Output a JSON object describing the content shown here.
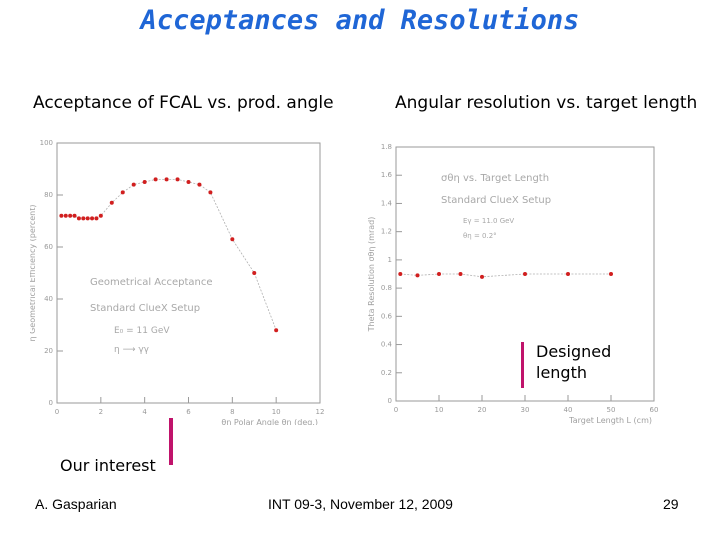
{
  "slide": {
    "title": "Acceptances and Resolutions",
    "left_subtitle": "Acceptance of FCAL vs. prod. angle",
    "right_subtitle": "Angular resolution vs. target length",
    "annotations": {
      "our_interest": "Our interest",
      "designed_line1": "Designed",
      "designed_line2": "length"
    },
    "footer": {
      "author": "A. Gasparian",
      "event": "INT 09-3, November 12, 2009",
      "page": "29"
    },
    "accent_color": "#1f66d6",
    "arrow_color": "#c0136b"
  },
  "chart_data": [
    {
      "type": "line",
      "xlabel": "θη Polar Angle   θη (deg.)",
      "ylabel": "η Geometrical Efficiency   (percent)",
      "xlim": [
        0,
        12
      ],
      "ylim": [
        0,
        100
      ],
      "x_ticks": [
        "0",
        "2",
        "4",
        "6",
        "8",
        "10",
        "12"
      ],
      "y_ticks": [
        "0",
        "20",
        "40",
        "60",
        "80",
        "100"
      ],
      "annotations": [
        "Geometrical Acceptance",
        "Standard ClueX Setup",
        "E₀ = 11 GeV",
        "η ⟶ γγ"
      ],
      "series": [
        {
          "x": [
            0.2,
            0.4,
            0.6,
            0.8,
            1.0,
            1.2,
            1.4,
            1.6,
            1.8,
            2.0,
            2.5,
            3.0,
            3.5,
            4.0,
            4.5,
            5.0,
            5.5,
            6.0,
            6.5,
            7.0,
            8.0,
            9.0,
            10.0
          ],
          "y": [
            72,
            72,
            72,
            72,
            71,
            71,
            71,
            71,
            71,
            72,
            77,
            81,
            84,
            85,
            86,
            86,
            86,
            85,
            84,
            81,
            63,
            50,
            28
          ]
        }
      ]
    },
    {
      "type": "line",
      "xlabel": "Target Length   L (cm)",
      "ylabel": "Theta Resolution  σθη  (mrad)",
      "xlim": [
        0,
        60
      ],
      "ylim": [
        0,
        1.8
      ],
      "x_ticks": [
        "0",
        "10",
        "20",
        "30",
        "40",
        "50",
        "60"
      ],
      "y_ticks": [
        "0",
        "0.2",
        "0.4",
        "0.6",
        "0.8",
        "1",
        "1.2",
        "1.4",
        "1.6",
        "1.8"
      ],
      "annotations": [
        "σθη vs. Target Length",
        "Standard ClueX Setup",
        "Eγ = 11.0 GeV",
        "θη = 0.2°"
      ],
      "series": [
        {
          "x": [
            1,
            5,
            10,
            15,
            20,
            30,
            40,
            50
          ],
          "y": [
            0.9,
            0.89,
            0.9,
            0.9,
            0.88,
            0.9,
            0.9,
            0.9
          ]
        }
      ]
    }
  ]
}
